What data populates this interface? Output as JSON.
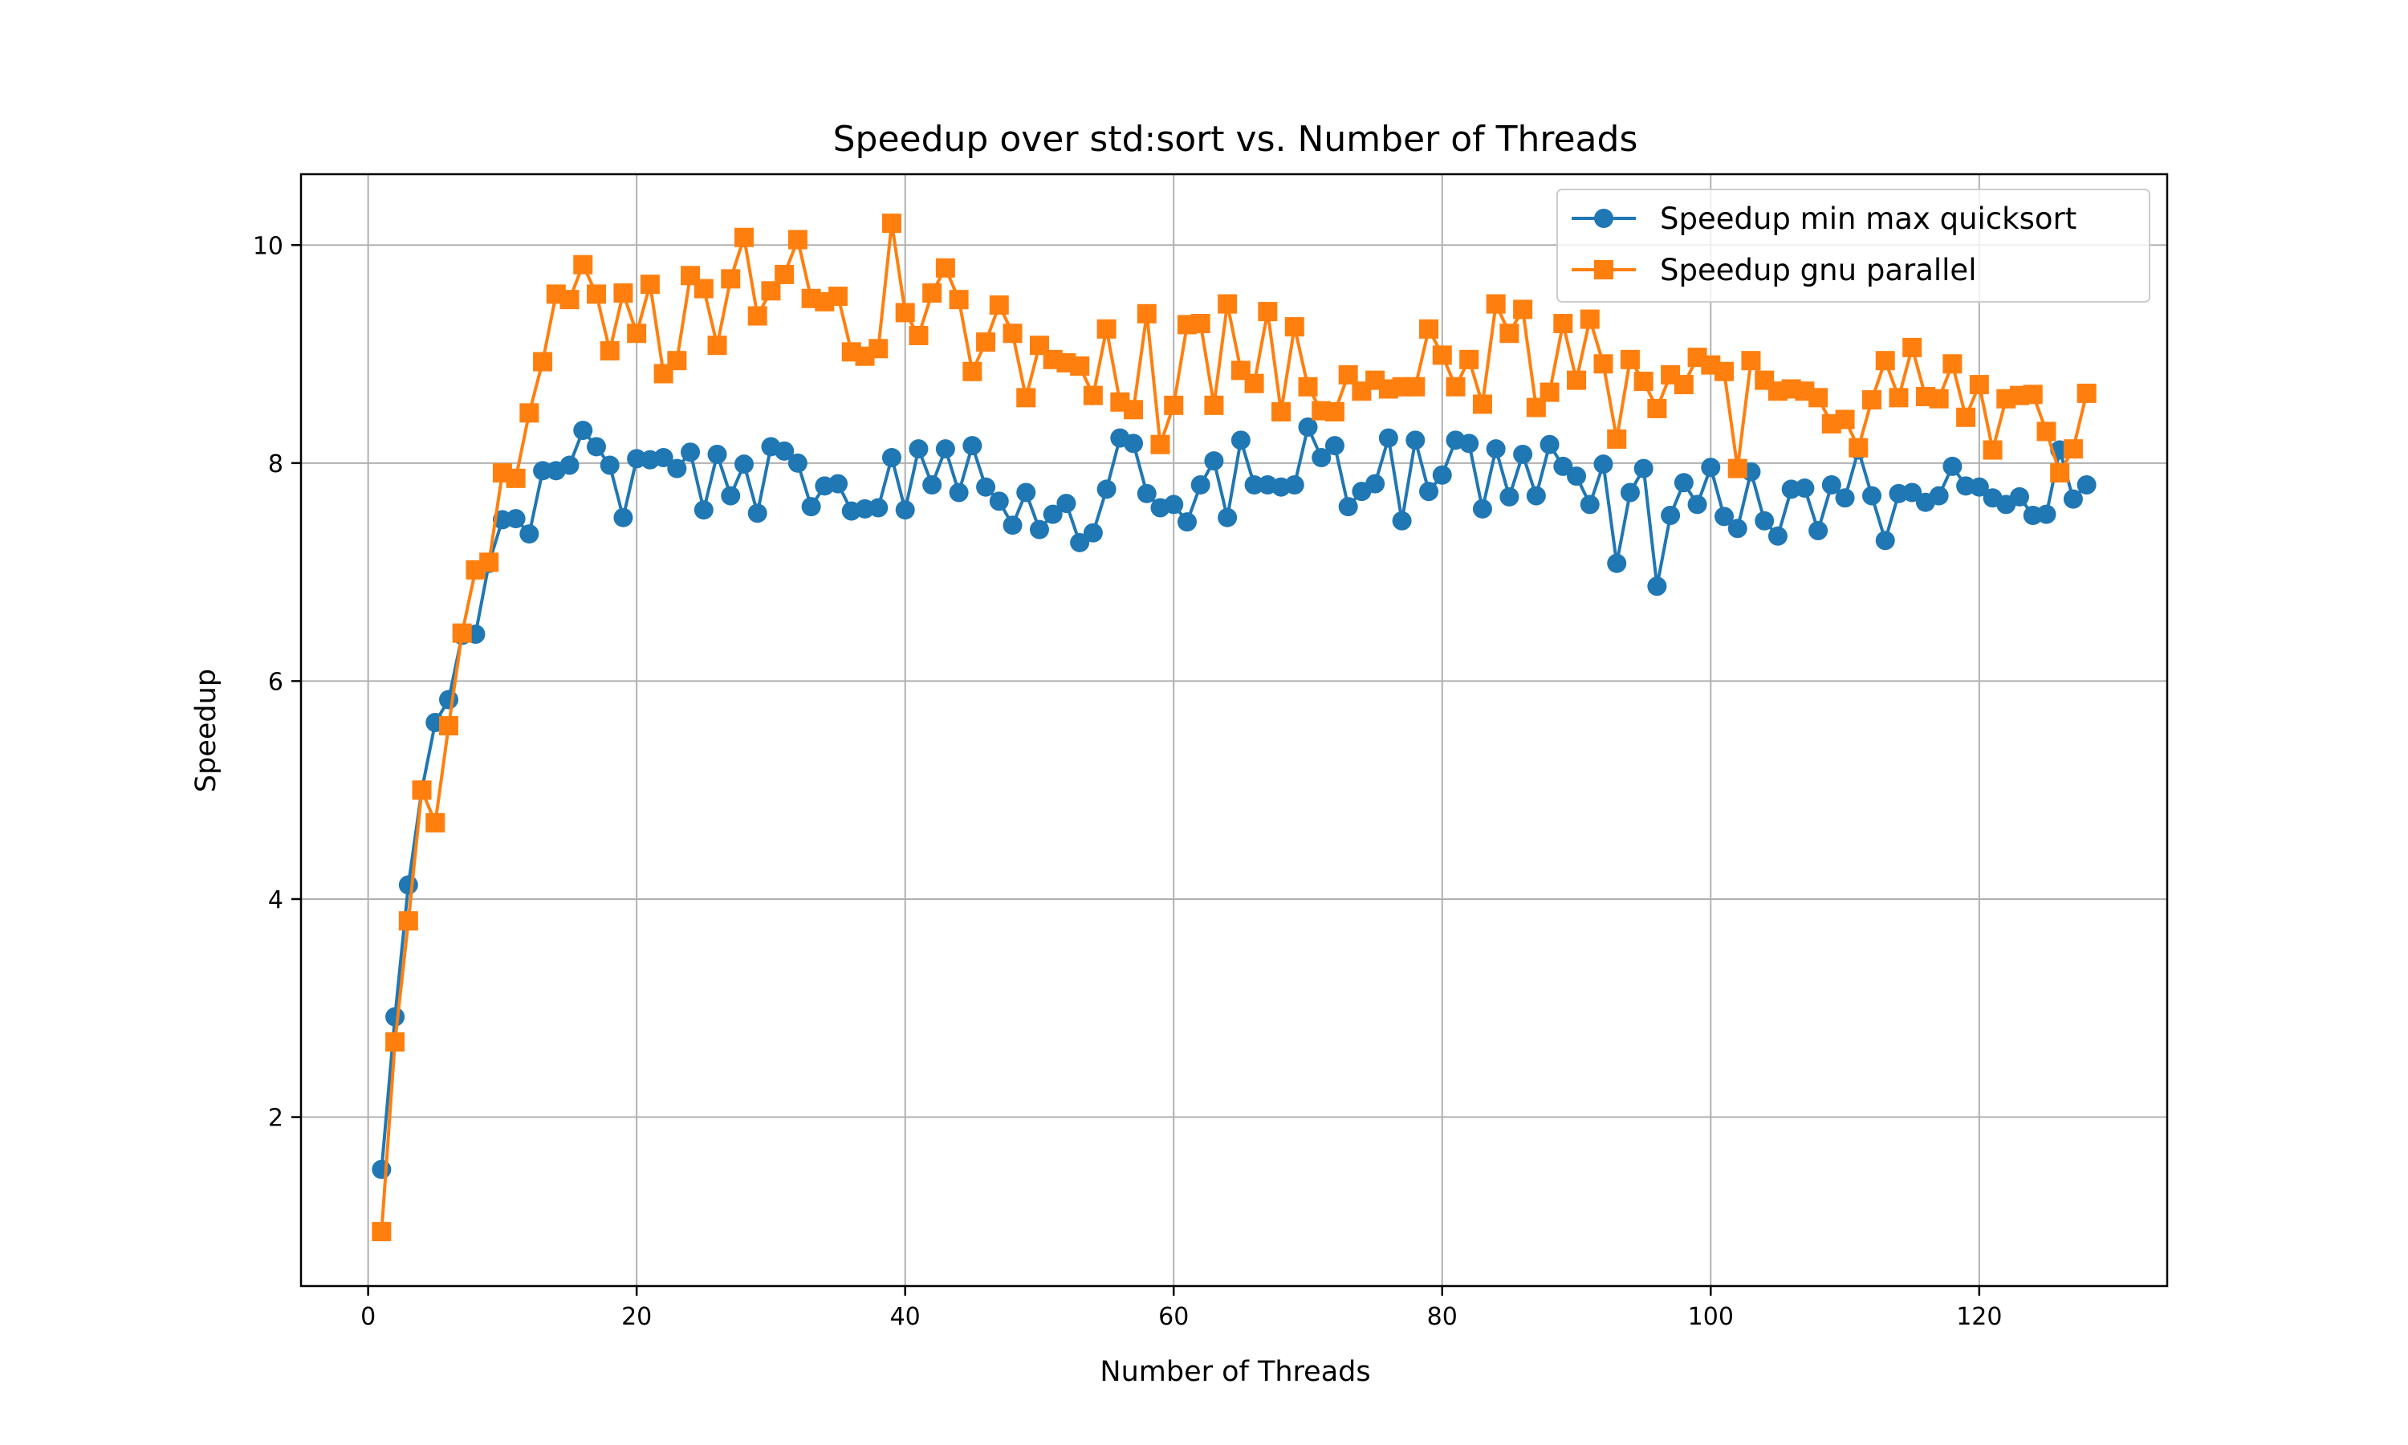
{
  "chart_data": {
    "type": "line",
    "title": "Speedup over std:sort vs. Number of Threads",
    "xlabel": "Number of Threads",
    "ylabel": "Speedup",
    "xlim": [
      -5,
      134
    ],
    "ylim": [
      0.45,
      10.65
    ],
    "xticks": [
      0,
      20,
      40,
      60,
      80,
      100,
      120
    ],
    "yticks": [
      2,
      4,
      6,
      8,
      10
    ],
    "grid": true,
    "legend_position": "top-right",
    "x": [
      1,
      2,
      3,
      4,
      5,
      6,
      7,
      8,
      9,
      10,
      11,
      12,
      13,
      14,
      15,
      16,
      17,
      18,
      19,
      20,
      21,
      22,
      23,
      24,
      25,
      26,
      27,
      28,
      29,
      30,
      31,
      32,
      33,
      34,
      35,
      36,
      37,
      38,
      39,
      40,
      41,
      42,
      43,
      44,
      45,
      46,
      47,
      48,
      49,
      50,
      51,
      52,
      53,
      54,
      55,
      56,
      57,
      58,
      59,
      60,
      61,
      62,
      63,
      64,
      65,
      66,
      67,
      68,
      69,
      70,
      71,
      72,
      73,
      74,
      75,
      76,
      77,
      78,
      79,
      80,
      81,
      82,
      83,
      84,
      85,
      86,
      87,
      88,
      89,
      90,
      91,
      92,
      93,
      94,
      95,
      96,
      97,
      98,
      99,
      100,
      101,
      102,
      103,
      104,
      105,
      106,
      107,
      108,
      109,
      110,
      111,
      112,
      113,
      114,
      115,
      116,
      117,
      118,
      119,
      120,
      121,
      122,
      123,
      124,
      125,
      126,
      127,
      128
    ],
    "series": [
      {
        "name": "Speedup min max quicksort",
        "color": "#1f77b4",
        "marker": "circle",
        "values": [
          1.52,
          2.92,
          4.13,
          5.0,
          5.62,
          5.83,
          6.42,
          6.43,
          7.08,
          7.48,
          7.49,
          7.35,
          7.93,
          7.93,
          7.98,
          8.3,
          8.15,
          7.98,
          7.5,
          8.04,
          8.03,
          8.05,
          7.95,
          8.1,
          7.57,
          8.08,
          7.7,
          7.99,
          7.54,
          8.15,
          8.11,
          8.0,
          7.6,
          7.79,
          7.81,
          7.56,
          7.58,
          7.59,
          8.05,
          7.57,
          8.13,
          7.8,
          8.13,
          7.73,
          8.16,
          7.78,
          7.65,
          7.43,
          7.73,
          7.39,
          7.53,
          7.63,
          7.27,
          7.36,
          7.76,
          8.23,
          8.18,
          7.72,
          7.59,
          7.62,
          7.46,
          7.8,
          8.02,
          7.5,
          8.21,
          7.8,
          7.8,
          7.78,
          7.8,
          8.33,
          8.05,
          8.16,
          7.6,
          7.74,
          7.81,
          8.23,
          7.47,
          8.21,
          7.74,
          7.89,
          8.21,
          8.18,
          7.58,
          8.13,
          7.69,
          8.08,
          7.7,
          8.17,
          7.97,
          7.88,
          7.62,
          7.99,
          7.08,
          7.73,
          7.95,
          6.87,
          7.52,
          7.82,
          7.62,
          7.96,
          7.51,
          7.4,
          7.92,
          7.47,
          7.33,
          7.76,
          7.77,
          7.38,
          7.8,
          7.68,
          8.12,
          7.7,
          7.29,
          7.72,
          7.73,
          7.64,
          7.7,
          7.97,
          7.79,
          7.78,
          7.68,
          7.62,
          7.69,
          7.52,
          7.53,
          8.12,
          7.67,
          7.8
        ]
      },
      {
        "name": "Speedup gnu parallel",
        "color": "#ff7f0e",
        "marker": "square",
        "values": [
          0.95,
          2.69,
          3.8,
          5.0,
          4.7,
          5.59,
          6.44,
          7.02,
          7.09,
          7.91,
          7.86,
          8.46,
          8.93,
          9.55,
          9.5,
          9.82,
          9.55,
          9.03,
          9.56,
          9.19,
          9.64,
          8.82,
          8.94,
          9.72,
          9.6,
          9.08,
          9.69,
          10.07,
          9.35,
          9.58,
          9.73,
          10.05,
          9.51,
          9.48,
          9.53,
          9.02,
          8.98,
          9.05,
          10.2,
          9.38,
          9.17,
          9.56,
          9.79,
          9.5,
          8.84,
          9.11,
          9.45,
          9.19,
          8.6,
          9.08,
          8.95,
          8.92,
          8.89,
          8.62,
          9.23,
          8.56,
          8.49,
          9.37,
          8.17,
          8.53,
          9.27,
          9.28,
          8.53,
          9.46,
          8.85,
          8.73,
          9.39,
          8.47,
          9.25,
          8.7,
          8.48,
          8.47,
          8.81,
          8.66,
          8.76,
          8.68,
          8.7,
          8.7,
          9.23,
          8.99,
          8.7,
          8.95,
          8.54,
          9.46,
          9.19,
          9.41,
          8.51,
          8.65,
          9.28,
          8.76,
          9.32,
          8.91,
          8.22,
          8.95,
          8.75,
          8.5,
          8.81,
          8.72,
          8.97,
          8.9,
          8.84,
          7.95,
          8.94,
          8.76,
          8.66,
          8.68,
          8.66,
          8.6,
          8.36,
          8.4,
          8.14,
          8.58,
          8.94,
          8.6,
          9.06,
          8.61,
          8.59,
          8.91,
          8.42,
          8.72,
          8.12,
          8.59,
          8.62,
          8.63,
          8.29,
          7.91,
          8.13,
          8.64
        ]
      }
    ]
  }
}
